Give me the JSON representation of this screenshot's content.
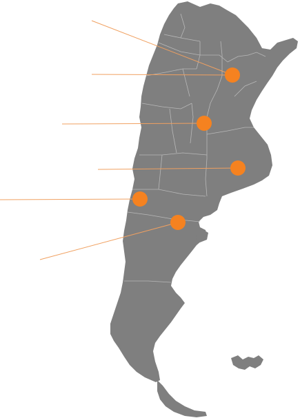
{
  "map": {
    "country": "Argentina",
    "land_color": "#7f7f7f",
    "border_color": "#b9b9b9",
    "marker_color": "#f58220",
    "leader_color": "#f0a060",
    "marker_count": 6
  }
}
